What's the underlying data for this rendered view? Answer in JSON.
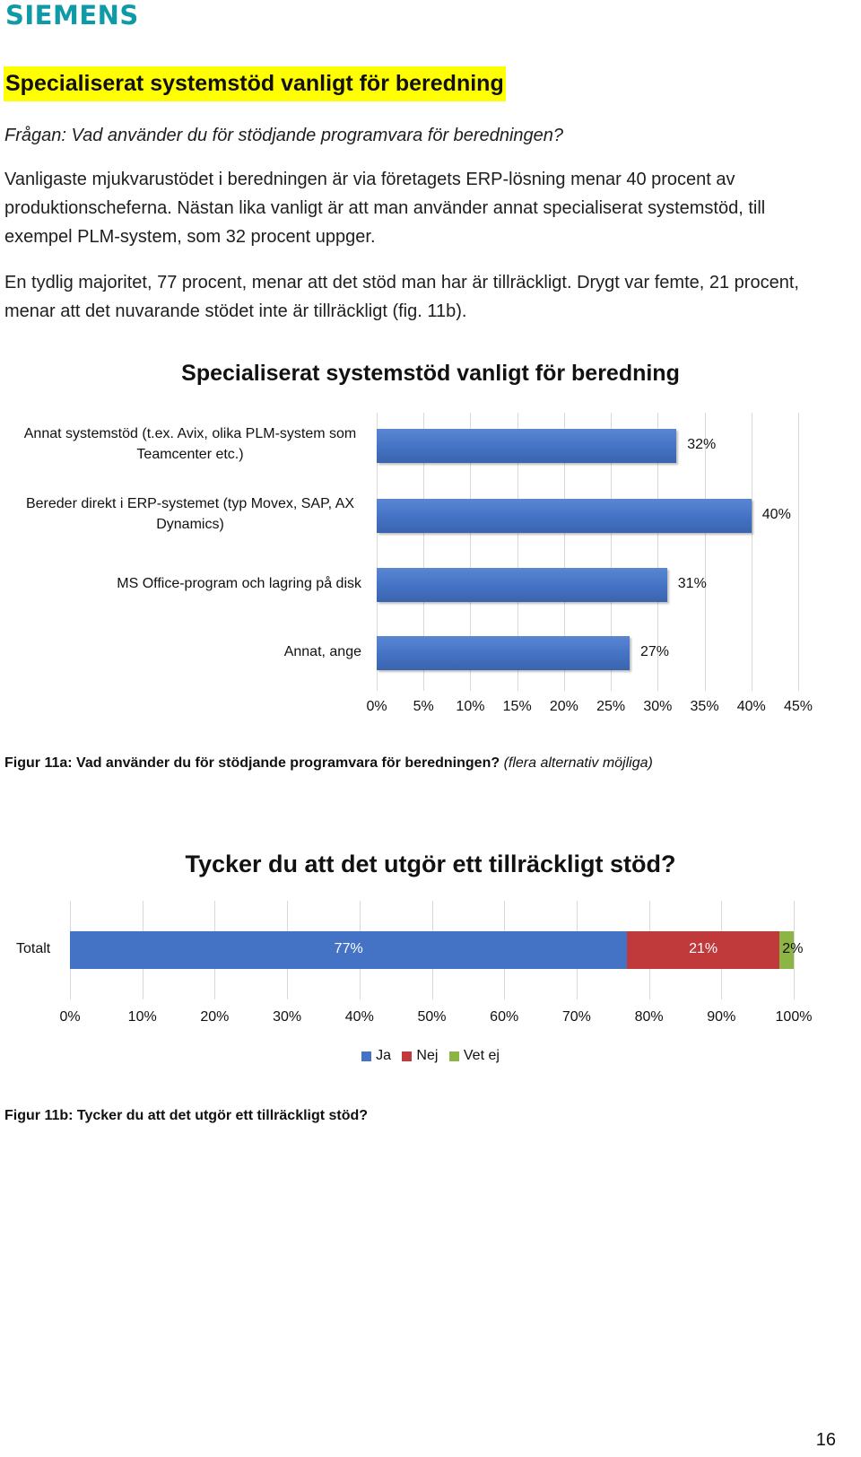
{
  "header": {
    "logo": "SIEMENS"
  },
  "section": {
    "heading": "Specialiserat systemstöd vanligt för beredning",
    "question": "Frågan: Vad använder du för stödjande programvara för beredningen?",
    "paragraph1": "Vanligaste mjukvarustödet i beredningen är via företagets ERP-lösning menar 40 procent av produktionscheferna. Nästan lika vanligt är att man använder annat specialiserat systemstöd, till exempel PLM-system, som 32 procent uppger.",
    "paragraph2": "En tydlig majoritet, 77 procent, menar att det stöd man har är tillräckligt. Drygt var femte, 21 procent, menar att det nuvarande stödet inte är tillräckligt (fig. 11b)."
  },
  "figure_a_caption": {
    "bold": "Figur 11a: Vad använder du för stödjande programvara för beredningen?",
    "italic": "(flera alternativ möjliga)"
  },
  "figure_b_caption": "Figur 11b: Tycker du att det utgör ett tillräckligt stöd?",
  "page_number": "16",
  "colors": {
    "ja": "#4472c4",
    "nej": "#c0393b",
    "vet_ej": "#8db545",
    "logo": "#0f9aa8",
    "highlight": "#ffff00"
  },
  "chart_data": [
    {
      "type": "bar",
      "orientation": "horizontal",
      "title": "Specialiserat systemstöd vanligt för beredning",
      "categories": [
        "Annat systemstöd (t.ex. Avix, olika PLM-system som Teamcenter etc.)",
        "Bereder direkt i ERP-systemet (typ Movex, SAP, AX Dynamics)",
        "MS Office-program och lagring på disk",
        "Annat, ange"
      ],
      "values": [
        32,
        40,
        31,
        27
      ],
      "value_labels": [
        "32%",
        "40%",
        "31%",
        "27%"
      ],
      "xlim": [
        0,
        45
      ],
      "xticks": [
        "0%",
        "5%",
        "10%",
        "15%",
        "20%",
        "25%",
        "30%",
        "35%",
        "40%",
        "45%"
      ],
      "grid": true,
      "legend": "none"
    },
    {
      "type": "bar",
      "orientation": "horizontal",
      "stacked": true,
      "title": "Tycker du att det utgör ett tillräckligt stöd?",
      "categories": [
        "Totalt"
      ],
      "series": [
        {
          "name": "Ja",
          "values": [
            77
          ],
          "label": "77%"
        },
        {
          "name": "Nej",
          "values": [
            21
          ],
          "label": "21%"
        },
        {
          "name": "Vet ej",
          "values": [
            2
          ],
          "label": "2%"
        }
      ],
      "xlim": [
        0,
        100
      ],
      "xticks": [
        "0%",
        "10%",
        "20%",
        "30%",
        "40%",
        "50%",
        "60%",
        "70%",
        "80%",
        "90%",
        "100%"
      ],
      "grid": true,
      "legend": "bottom"
    }
  ]
}
